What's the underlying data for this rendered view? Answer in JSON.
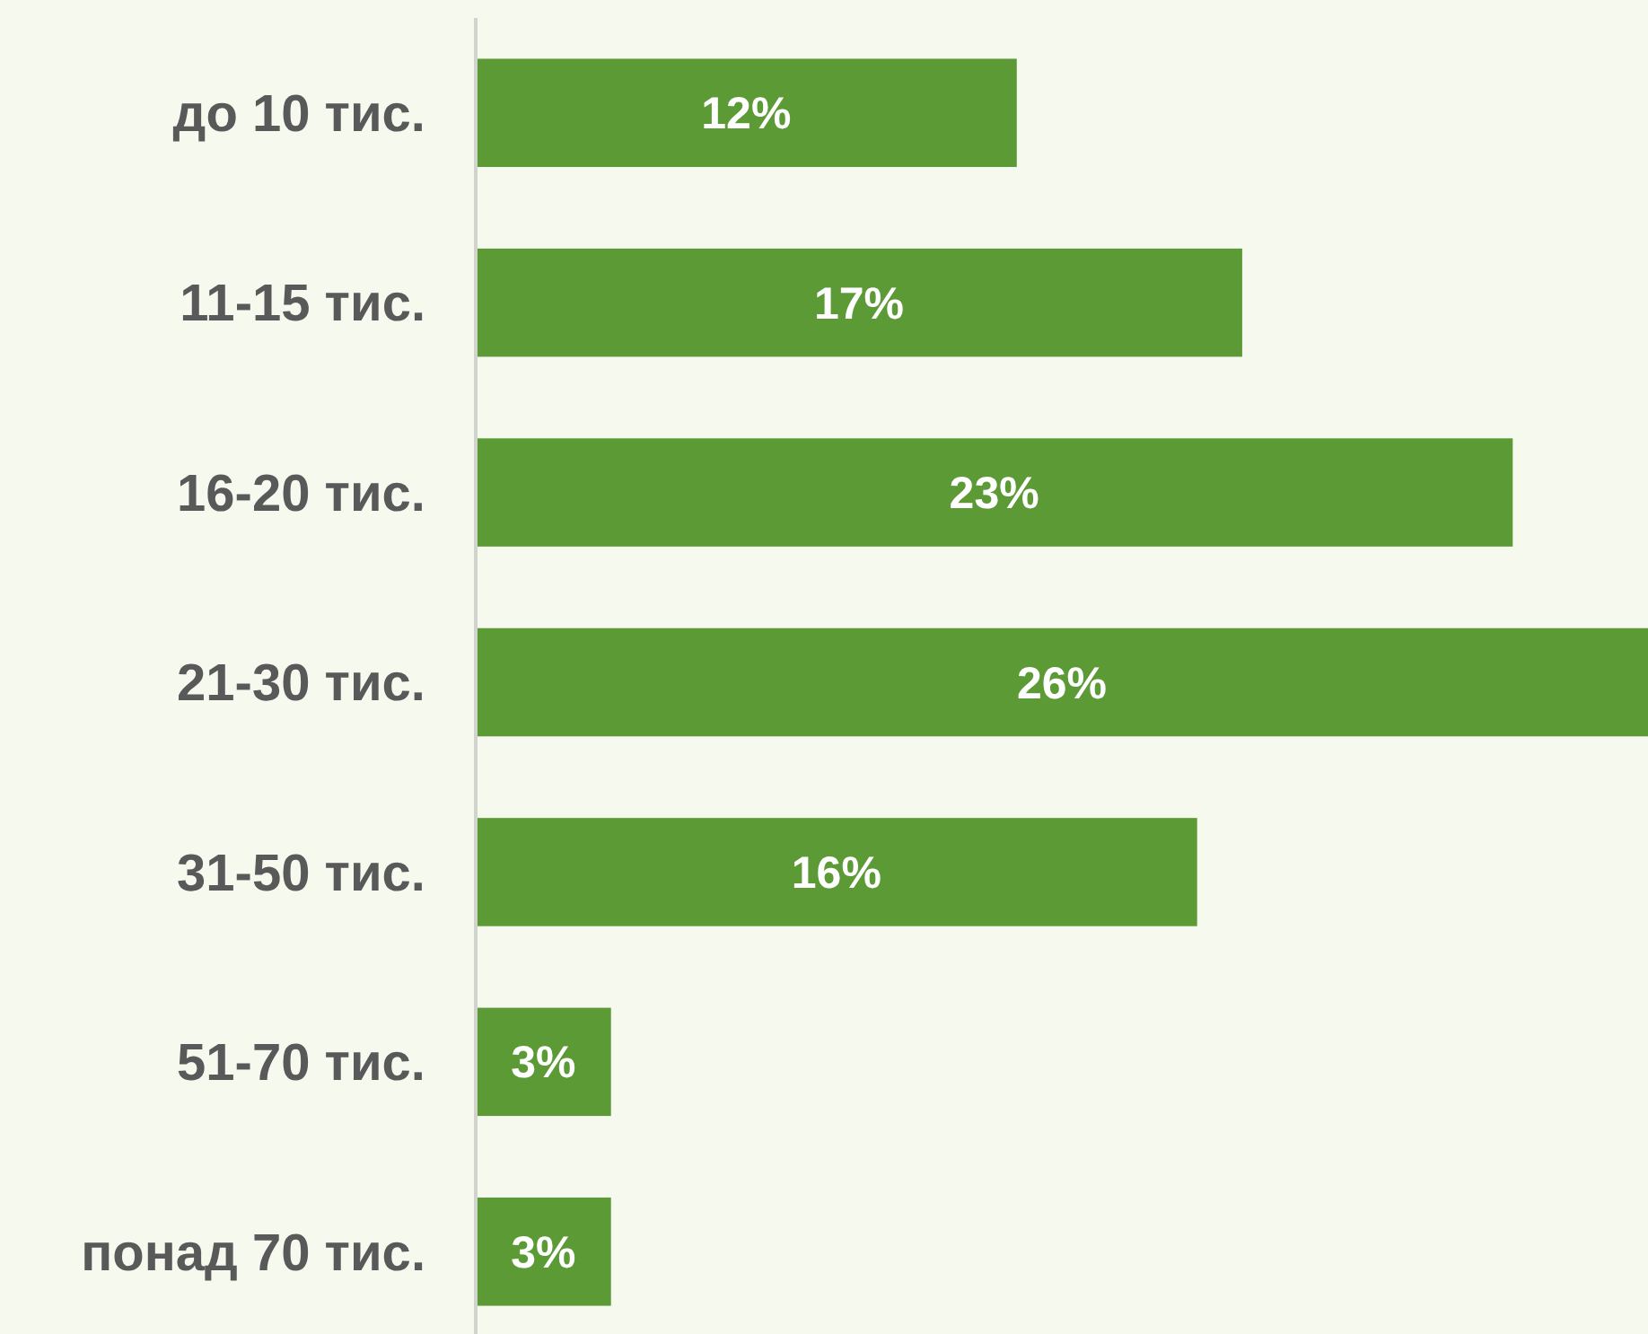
{
  "chart_data": {
    "type": "bar",
    "orientation": "horizontal",
    "categories": [
      "до 10 тис.",
      "11-15 тис.",
      "16-20 тис.",
      "21-30 тис.",
      "31-50 тис.",
      "51-70 тис.",
      "понад 70 тис."
    ],
    "values": [
      12,
      17,
      23,
      26,
      16,
      3,
      3
    ],
    "color": "#5b9a35",
    "value_labels": [
      "12%",
      "17%",
      "23%",
      "26%",
      "16%",
      "3%",
      "3%"
    ]
  }
}
